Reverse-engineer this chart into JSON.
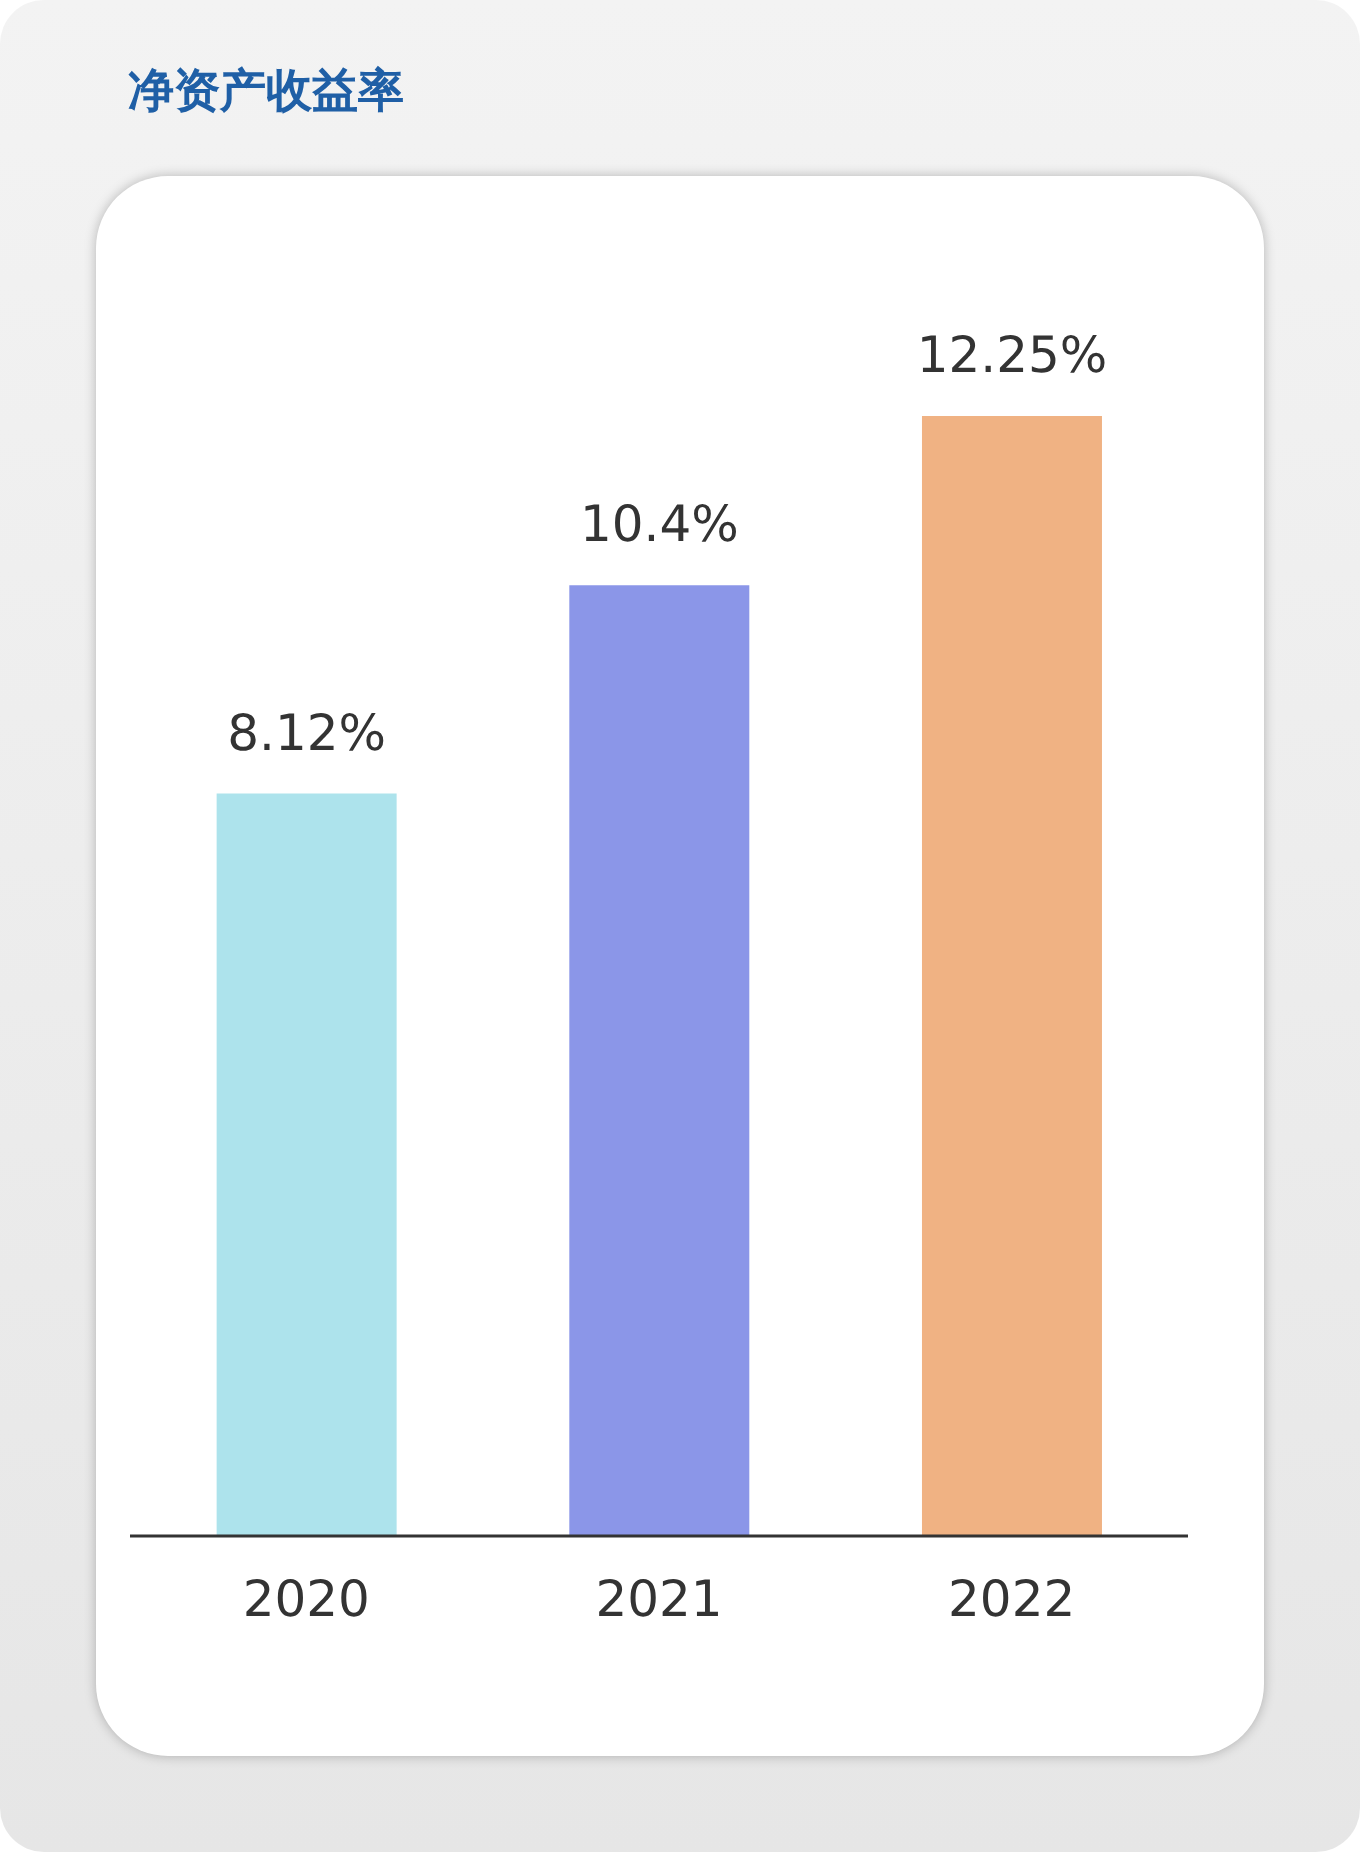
{
  "chart_data": {
    "type": "bar",
    "title": "净资产收益率",
    "categories": [
      "2020",
      "2021",
      "2022"
    ],
    "values": [
      8.12,
      10.4,
      12.25
    ],
    "colors": [
      "#ade3ec",
      "#8b96e8",
      "#f0b283"
    ],
    "value_labels": [
      "8.12%",
      "10.4%",
      "12.25%"
    ]
  }
}
